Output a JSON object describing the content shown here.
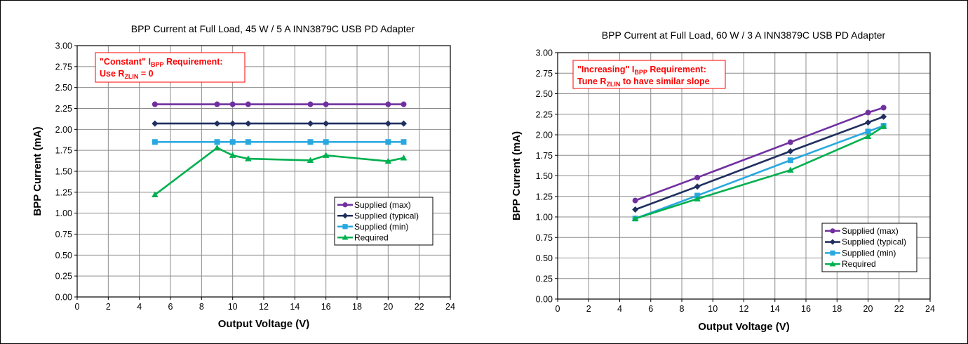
{
  "chart_data": [
    {
      "type": "line",
      "title": "BPP Current at Full Load, 45 W / 5 A INN3879C USB PD Adapter",
      "xlabel": "Output Voltage (V)",
      "ylabel": "BPP Current (mA)",
      "xlim": [
        0,
        24
      ],
      "ylim": [
        0,
        3
      ],
      "xticks": [
        "0",
        "2",
        "4",
        "6",
        "8",
        "10",
        "12",
        "14",
        "16",
        "18",
        "20",
        "22",
        "24"
      ],
      "yticks": [
        "0.00",
        "0.25",
        "0.50",
        "0.75",
        "1.00",
        "1.25",
        "1.50",
        "1.75",
        "2.00",
        "2.25",
        "2.50",
        "2.75",
        "3.00"
      ],
      "grid": true,
      "legend_position": "lower-right",
      "annotation": {
        "line1_quote": "\"Constant\" I",
        "line1_sub": "BPP",
        "line1_rest": " Requirement:",
        "line2_main": "Use R",
        "line2_sub": "ZLIN",
        "line2_rest": " = 0"
      },
      "series": [
        {
          "name": "Supplied (max)",
          "color": "#7030a0",
          "marker": "circle",
          "x": [
            5,
            9,
            10,
            11,
            15,
            16,
            20,
            21
          ],
          "y": [
            2.3,
            2.3,
            2.3,
            2.3,
            2.3,
            2.3,
            2.3,
            2.3
          ]
        },
        {
          "name": "Supplied (typical)",
          "color": "#1f2f5f",
          "marker": "diamond",
          "x": [
            5,
            9,
            10,
            11,
            15,
            16,
            20,
            21
          ],
          "y": [
            2.07,
            2.07,
            2.07,
            2.07,
            2.07,
            2.07,
            2.07,
            2.07
          ]
        },
        {
          "name": "Supplied (min)",
          "color": "#29a8e0",
          "marker": "square",
          "x": [
            5,
            9,
            10,
            11,
            15,
            16,
            20,
            21
          ],
          "y": [
            1.85,
            1.85,
            1.85,
            1.85,
            1.85,
            1.85,
            1.85,
            1.85
          ]
        },
        {
          "name": "Required",
          "color": "#00b050",
          "marker": "triangle",
          "x": [
            5,
            9,
            10,
            11,
            15,
            16,
            20,
            21
          ],
          "y": [
            1.22,
            1.78,
            1.69,
            1.65,
            1.63,
            1.69,
            1.62,
            1.66
          ]
        }
      ]
    },
    {
      "type": "line",
      "title": "BPP Current at Full Load, 60 W / 3 A INN3879C USB PD Adapter",
      "xlabel": "Output Voltage (V)",
      "ylabel": "BPP Current (mA)",
      "xlim": [
        0,
        24
      ],
      "ylim": [
        0,
        3
      ],
      "xticks": [
        "0",
        "2",
        "4",
        "6",
        "8",
        "10",
        "12",
        "14",
        "16",
        "18",
        "20",
        "22",
        "24"
      ],
      "yticks": [
        "0.00",
        "0.25",
        "0.50",
        "0.75",
        "1.00",
        "1.25",
        "1.50",
        "1.75",
        "2.00",
        "2.25",
        "2.50",
        "2.75",
        "3.00"
      ],
      "grid": true,
      "legend_position": "lower-right",
      "annotation": {
        "line1_quote": "\"Increasing\" I",
        "line1_sub": "BPP",
        "line1_rest": " Requirement:",
        "line2_main": "Tune R",
        "line2_sub": "ZLIN",
        "line2_rest": " to have similar slope"
      },
      "series": [
        {
          "name": "Supplied (max)",
          "color": "#7030a0",
          "marker": "circle",
          "x": [
            5,
            9,
            15,
            20,
            21
          ],
          "y": [
            1.2,
            1.48,
            1.91,
            2.27,
            2.33
          ]
        },
        {
          "name": "Supplied (typical)",
          "color": "#1f2f5f",
          "marker": "diamond",
          "x": [
            5,
            9,
            15,
            20,
            21
          ],
          "y": [
            1.09,
            1.37,
            1.8,
            2.15,
            2.22
          ]
        },
        {
          "name": "Supplied (min)",
          "color": "#29a8e0",
          "marker": "square",
          "x": [
            5,
            9,
            15,
            20,
            21
          ],
          "y": [
            0.98,
            1.26,
            1.69,
            2.04,
            2.11
          ]
        },
        {
          "name": "Required",
          "color": "#00b050",
          "marker": "triangle",
          "x": [
            5,
            9,
            15,
            20,
            21
          ],
          "y": [
            0.98,
            1.22,
            1.57,
            1.98,
            2.1
          ]
        }
      ]
    }
  ]
}
